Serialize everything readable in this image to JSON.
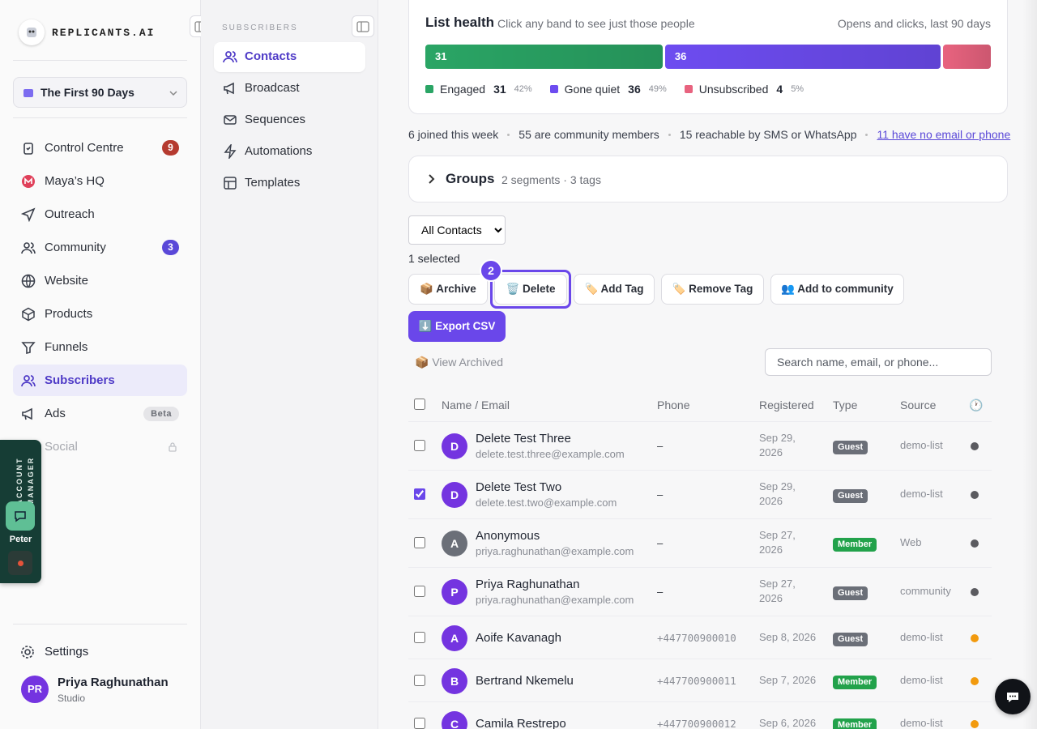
{
  "sidebar": {
    "brand": "REPLICANTS.AI",
    "workspace": "The First 90 Days",
    "nav": [
      {
        "label": "Control Centre",
        "badge": "9",
        "badge_color": "#b53a2f"
      },
      {
        "label": "Maya’s HQ"
      },
      {
        "label": "Outreach"
      },
      {
        "label": "Community",
        "badge": "3",
        "badge_color": "#5a48d8"
      },
      {
        "label": "Website"
      },
      {
        "label": "Products"
      },
      {
        "label": "Funnels"
      },
      {
        "label": "Subscribers",
        "active": true
      },
      {
        "label": "Ads",
        "badge": "Beta",
        "badge_color": "#e5e5e8"
      },
      {
        "label": "Social",
        "locked": true
      }
    ],
    "account_manager": {
      "title": "ACCOUNT MANAGER",
      "name": "Peter"
    },
    "settings": "Settings",
    "user": {
      "initials": "PR",
      "name": "Priya Raghunathan",
      "plan": "Studio"
    }
  },
  "subnav": {
    "heading": "SUBSCRIBERS",
    "items": [
      {
        "label": "Contacts",
        "active": true
      },
      {
        "label": "Broadcast"
      },
      {
        "label": "Sequences"
      },
      {
        "label": "Automations"
      },
      {
        "label": "Templates"
      }
    ]
  },
  "list_health": {
    "title": "List health",
    "hint": "Click any band to see just those people",
    "period": "Opens and clicks, last 90 days",
    "bands": [
      {
        "name": "Engaged",
        "count": 31,
        "share": "42%",
        "color": "#2aa565",
        "label_in_bar": true
      },
      {
        "name": "Gone quiet",
        "count": 36,
        "share": "49%",
        "color": "#6d4cf0",
        "label_in_bar": true
      },
      {
        "name": "Unsubscribed",
        "count": 4,
        "share": "5%",
        "color": "#e8637f",
        "label_in_bar": false
      }
    ]
  },
  "stats": [
    "6 joined this week",
    "55 are community members",
    "15 reachable by SMS or WhatsApp",
    "11 have no email or phone"
  ],
  "groups": {
    "title": "Groups",
    "summary": "2 segments · 3 tags"
  },
  "filter": "All Contacts",
  "selection": {
    "count_text": "1 selected",
    "step": "2",
    "actions": [
      "📦 Archive",
      "🗑️ Delete",
      "🏷️ Add Tag",
      "🏷️ Remove Tag",
      "👥 Add to community",
      "⬇️ Export CSV"
    ]
  },
  "view_archived": "📦 View Archived",
  "search_placeholder": "Search name, email, or phone...",
  "table": {
    "columns": [
      "Name / Email",
      "Phone",
      "Registered",
      "Type",
      "Source",
      "🕐"
    ],
    "rows": [
      {
        "initial": "D",
        "avatar_color": "#7434e0",
        "name": "Delete Test Three",
        "email": "delete.test.three@example.com",
        "phone": "–",
        "registered": "Sep 29, 2026",
        "type": "Guest",
        "source": "demo-list",
        "status_color": "#5b5b60",
        "selected": false
      },
      {
        "initial": "D",
        "avatar_color": "#7434e0",
        "name": "Delete Test Two",
        "email": "delete.test.two@example.com",
        "phone": "–",
        "registered": "Sep 29, 2026",
        "type": "Guest",
        "source": "demo-list",
        "status_color": "#5b5b60",
        "selected": true
      },
      {
        "initial": "A",
        "avatar_color": "#6b6f78",
        "name": "Anonymous",
        "email": "priya.raghunathan@example.com",
        "phone": "–",
        "registered": "Sep 27, 2026",
        "type": "Member",
        "source": "Web",
        "status_color": "#5b5b60",
        "selected": false
      },
      {
        "initial": "P",
        "avatar_color": "#7434e0",
        "name": "Priya Raghunathan",
        "email": "priya.raghunathan@example.com",
        "phone": "–",
        "registered": "Sep 27, 2026",
        "type": "Guest",
        "source": "community",
        "status_color": "#5b5b60",
        "selected": false
      },
      {
        "initial": "A",
        "avatar_color": "#7434e0",
        "name": "Aoife Kavanagh",
        "phone": "+447700900010",
        "registered": "Sep 8, 2026",
        "type": "Guest",
        "source": "demo-list",
        "status_color": "#f29a0e",
        "selected": false
      },
      {
        "initial": "B",
        "avatar_color": "#7434e0",
        "name": "Bertrand Nkemelu",
        "phone": "+447700900011",
        "registered": "Sep 7, 2026",
        "type": "Member",
        "source": "demo-list",
        "status_color": "#f29a0e",
        "selected": false
      },
      {
        "initial": "C",
        "avatar_color": "#7434e0",
        "name": "Camila Restrepo",
        "phone": "+447700900012",
        "registered": "Sep 6, 2026",
        "type": "Member",
        "source": "demo-list",
        "status_color": "#f29a0e",
        "selected": false
      }
    ]
  }
}
